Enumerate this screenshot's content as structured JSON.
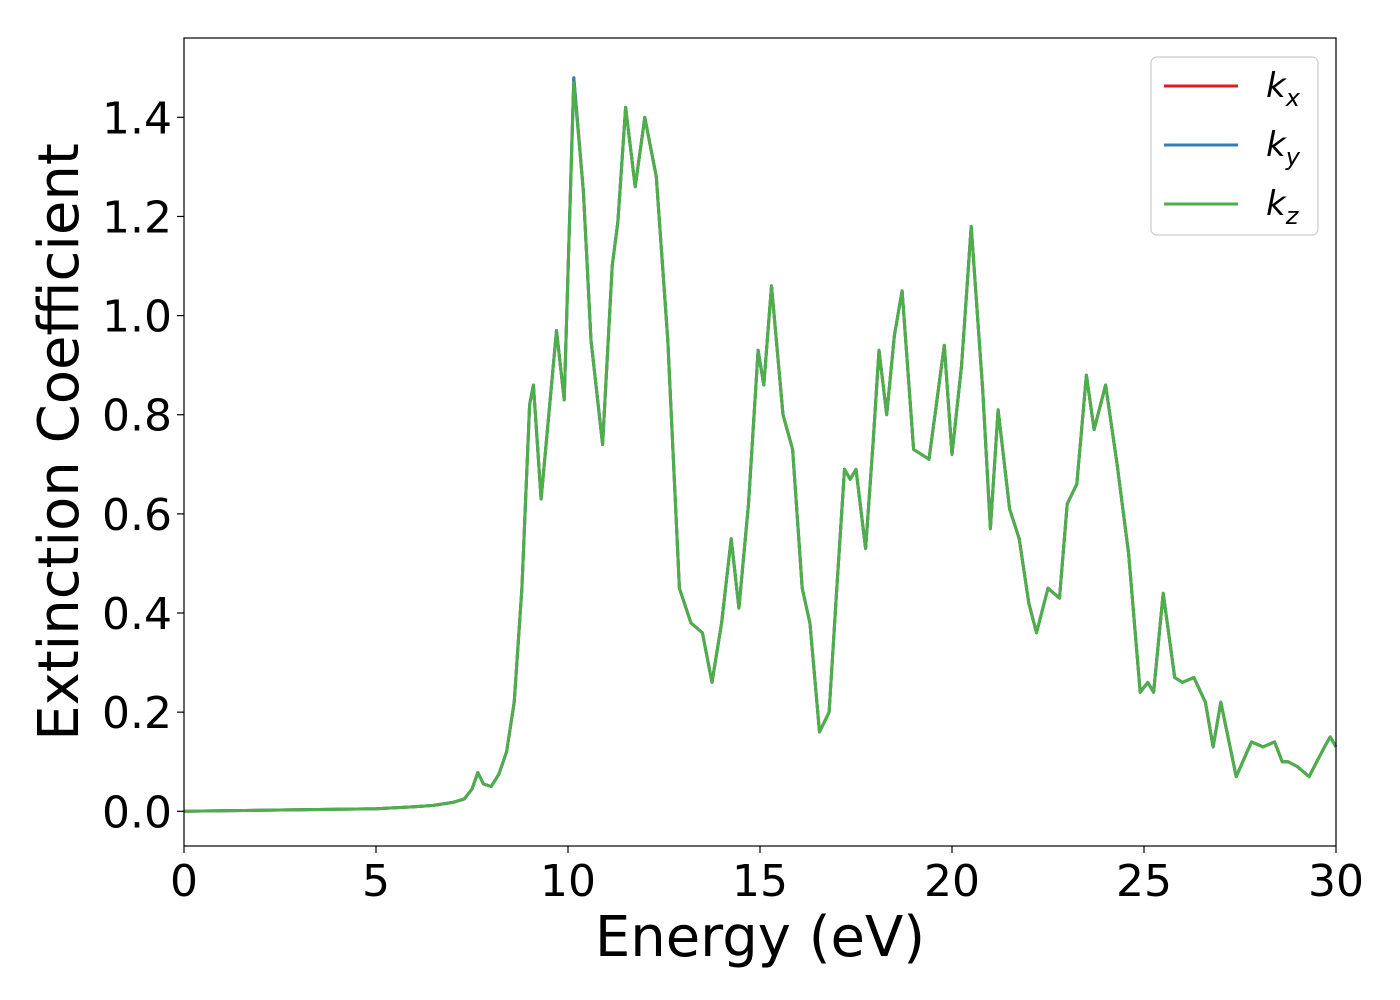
{
  "chart_data": {
    "type": "line",
    "title": "",
    "xlabel": "Energy (eV)",
    "ylabel": "Extinction Coefficient",
    "xlim": [
      0,
      30
    ],
    "ylim": [
      -0.07,
      1.56
    ],
    "x_ticks": [
      0,
      5,
      10,
      15,
      20,
      25,
      30
    ],
    "x_tick_labels": [
      "0",
      "5",
      "10",
      "15",
      "20",
      "25",
      "30"
    ],
    "y_ticks": [
      0.0,
      0.2,
      0.4,
      0.6,
      0.8,
      1.0,
      1.2,
      1.4
    ],
    "y_tick_labels": [
      "0.0",
      "0.2",
      "0.4",
      "0.6",
      "0.8",
      "1.0",
      "1.2",
      "1.4"
    ],
    "grid": false,
    "legend_position": "top-right",
    "x": [
      0,
      1,
      2,
      3,
      4,
      5,
      5.5,
      6,
      6.5,
      7,
      7.3,
      7.5,
      7.65,
      7.8,
      8.0,
      8.2,
      8.4,
      8.6,
      8.8,
      9.0,
      9.1,
      9.3,
      9.5,
      9.7,
      9.9,
      10.15,
      10.4,
      10.6,
      10.9,
      11.15,
      11.3,
      11.5,
      11.75,
      12.0,
      12.3,
      12.6,
      12.9,
      13.2,
      13.5,
      13.75,
      14.0,
      14.25,
      14.45,
      14.7,
      14.95,
      15.1,
      15.3,
      15.6,
      15.85,
      16.1,
      16.3,
      16.55,
      16.8,
      17.0,
      17.2,
      17.35,
      17.5,
      17.75,
      17.95,
      18.1,
      18.3,
      18.5,
      18.7,
      19.0,
      19.4,
      19.8,
      20.0,
      20.25,
      20.5,
      20.8,
      21.0,
      21.2,
      21.5,
      21.75,
      22.0,
      22.2,
      22.5,
      22.8,
      23.0,
      23.25,
      23.5,
      23.7,
      24.0,
      24.3,
      24.6,
      24.9,
      25.1,
      25.25,
      25.5,
      25.8,
      26.0,
      26.3,
      26.6,
      26.8,
      27.0,
      27.4,
      27.8,
      28.1,
      28.4,
      28.6,
      28.75,
      29.0,
      29.3,
      29.5,
      29.7,
      29.85,
      30.0
    ],
    "series": [
      {
        "name": "k_x",
        "color": "#e41a1c",
        "values": [
          0,
          0.001,
          0.002,
          0.003,
          0.004,
          0.005,
          0.007,
          0.009,
          0.012,
          0.018,
          0.025,
          0.045,
          0.078,
          0.055,
          0.05,
          0.075,
          0.12,
          0.22,
          0.45,
          0.82,
          0.86,
          0.63,
          0.8,
          0.97,
          0.83,
          1.48,
          1.25,
          0.95,
          0.74,
          1.1,
          1.19,
          1.42,
          1.26,
          1.4,
          1.28,
          0.95,
          0.45,
          0.38,
          0.36,
          0.26,
          0.38,
          0.55,
          0.41,
          0.62,
          0.93,
          0.86,
          1.06,
          0.8,
          0.73,
          0.45,
          0.38,
          0.16,
          0.2,
          0.45,
          0.69,
          0.67,
          0.69,
          0.53,
          0.75,
          0.93,
          0.8,
          0.96,
          1.05,
          0.73,
          0.71,
          0.94,
          0.72,
          0.9,
          1.18,
          0.85,
          0.57,
          0.81,
          0.61,
          0.55,
          0.42,
          0.36,
          0.45,
          0.43,
          0.62,
          0.66,
          0.88,
          0.77,
          0.86,
          0.7,
          0.52,
          0.24,
          0.26,
          0.24,
          0.44,
          0.27,
          0.26,
          0.27,
          0.22,
          0.13,
          0.22,
          0.07,
          0.14,
          0.13,
          0.14,
          0.1,
          0.1,
          0.09,
          0.07,
          0.1,
          0.13,
          0.15,
          0.13
        ]
      },
      {
        "name": "k_y",
        "color": "#377eb8",
        "values": [
          0,
          0.001,
          0.002,
          0.003,
          0.004,
          0.005,
          0.007,
          0.009,
          0.012,
          0.018,
          0.025,
          0.045,
          0.078,
          0.055,
          0.05,
          0.075,
          0.12,
          0.22,
          0.45,
          0.82,
          0.86,
          0.63,
          0.8,
          0.97,
          0.83,
          1.48,
          1.25,
          0.95,
          0.74,
          1.1,
          1.19,
          1.42,
          1.26,
          1.4,
          1.28,
          0.95,
          0.45,
          0.38,
          0.36,
          0.26,
          0.38,
          0.55,
          0.41,
          0.62,
          0.93,
          0.86,
          1.06,
          0.8,
          0.73,
          0.45,
          0.38,
          0.16,
          0.2,
          0.45,
          0.69,
          0.67,
          0.69,
          0.53,
          0.75,
          0.93,
          0.8,
          0.96,
          1.05,
          0.73,
          0.71,
          0.94,
          0.72,
          0.9,
          1.18,
          0.85,
          0.57,
          0.81,
          0.61,
          0.55,
          0.42,
          0.36,
          0.45,
          0.43,
          0.62,
          0.66,
          0.88,
          0.77,
          0.86,
          0.7,
          0.52,
          0.24,
          0.26,
          0.24,
          0.44,
          0.27,
          0.26,
          0.27,
          0.22,
          0.13,
          0.22,
          0.07,
          0.14,
          0.13,
          0.14,
          0.1,
          0.1,
          0.09,
          0.07,
          0.1,
          0.13,
          0.15,
          0.13
        ]
      },
      {
        "name": "k_z",
        "color": "#4daf4a",
        "values": [
          0,
          0.001,
          0.002,
          0.003,
          0.004,
          0.005,
          0.007,
          0.009,
          0.012,
          0.018,
          0.025,
          0.045,
          0.078,
          0.055,
          0.05,
          0.075,
          0.12,
          0.22,
          0.45,
          0.82,
          0.86,
          0.63,
          0.8,
          0.97,
          0.83,
          1.47,
          1.25,
          0.95,
          0.74,
          1.1,
          1.19,
          1.42,
          1.26,
          1.4,
          1.28,
          0.95,
          0.45,
          0.38,
          0.36,
          0.26,
          0.38,
          0.55,
          0.41,
          0.62,
          0.93,
          0.86,
          1.06,
          0.8,
          0.73,
          0.45,
          0.38,
          0.16,
          0.2,
          0.45,
          0.69,
          0.67,
          0.69,
          0.53,
          0.75,
          0.93,
          0.8,
          0.96,
          1.05,
          0.73,
          0.71,
          0.94,
          0.72,
          0.9,
          1.18,
          0.85,
          0.57,
          0.81,
          0.61,
          0.55,
          0.42,
          0.36,
          0.45,
          0.43,
          0.62,
          0.66,
          0.88,
          0.77,
          0.86,
          0.7,
          0.52,
          0.24,
          0.26,
          0.24,
          0.44,
          0.27,
          0.26,
          0.27,
          0.22,
          0.13,
          0.22,
          0.07,
          0.14,
          0.13,
          0.14,
          0.1,
          0.1,
          0.09,
          0.07,
          0.1,
          0.13,
          0.15,
          0.13
        ]
      }
    ],
    "legend": [
      {
        "base": "k",
        "sub": "x",
        "color": "#e41a1c"
      },
      {
        "base": "k",
        "sub": "y",
        "color": "#377eb8"
      },
      {
        "base": "k",
        "sub": "z",
        "color": "#4daf4a"
      }
    ]
  }
}
